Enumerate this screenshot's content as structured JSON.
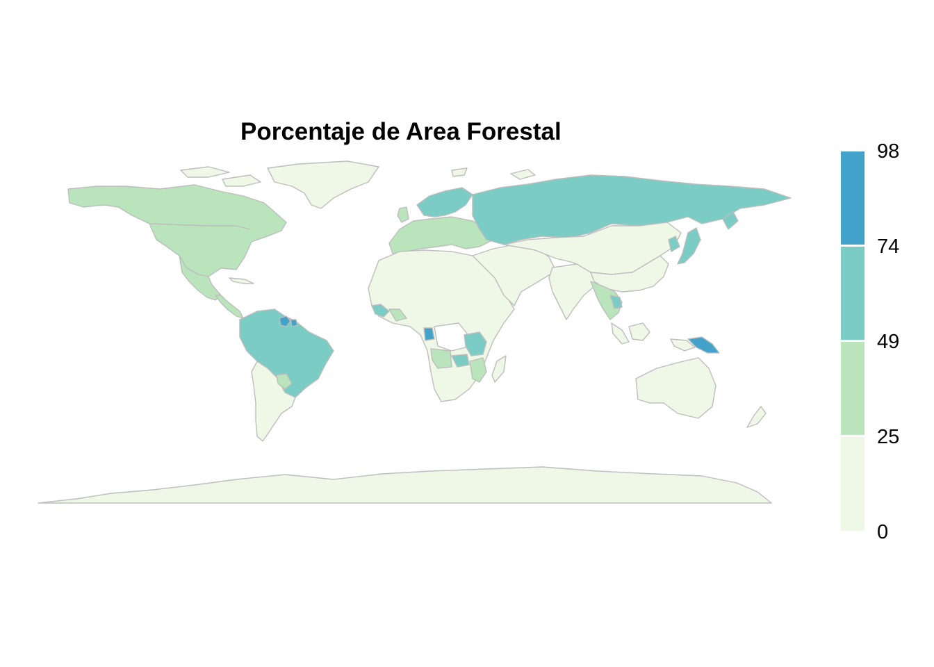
{
  "title": "Porcentaje de Area Forestal",
  "colors": {
    "bin_0_25": "#eff7e6",
    "bin_25_49": "#bae4bc",
    "bin_49_74": "#7bccc4",
    "bin_74_98": "#43a2ca",
    "border": "#bdbdbd"
  },
  "legend": {
    "ticks": [
      "98",
      "74",
      "49",
      "25",
      "0"
    ],
    "bins": [
      {
        "min": 74,
        "max": 98,
        "color": "#43a2ca"
      },
      {
        "min": 49,
        "max": 74,
        "color": "#7bccc4"
      },
      {
        "min": 25,
        "max": 49,
        "color": "#bae4bc"
      },
      {
        "min": 0,
        "max": 25,
        "color": "#eff7e6"
      }
    ]
  }
}
